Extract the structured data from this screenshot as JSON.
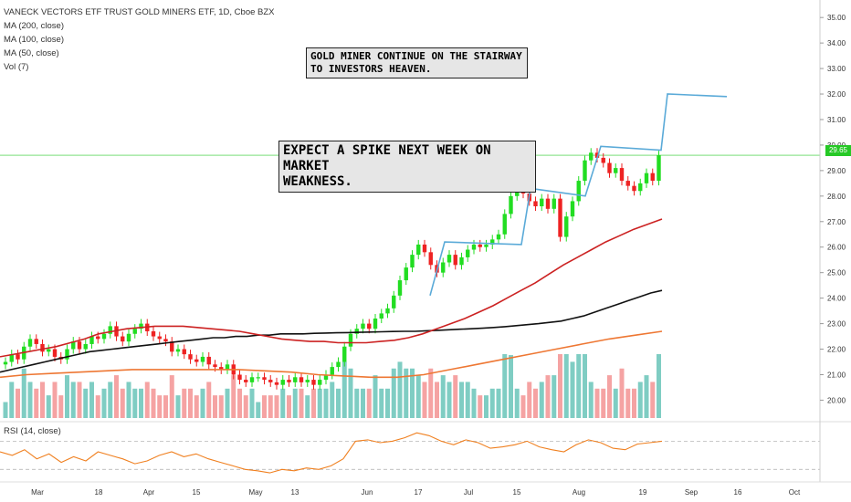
{
  "legend": {
    "title": "VANECK VECTORS ETF TRUST GOLD MINERS ETF, 1D, Cboe BZX",
    "indicators": [
      "MA (200, close)",
      "MA (100, close)",
      "MA (50, close)",
      "Vol (7)"
    ]
  },
  "annotations": {
    "note1": "GOLD MINER CONTINUE ON THE STAIRWAY\nTO INVESTORS HEAVEN.",
    "note2": "EXPECT A SPIKE NEXT WEEK ON MARKET\nWEAKNESS."
  },
  "rsi_label": "RSI (14, close)",
  "last_price": "29.65",
  "colors": {
    "up": "#22dd22",
    "down": "#ee2222",
    "vol_up": "#7fcdc3",
    "vol_down": "#f5a3a3",
    "ma200": "#111111",
    "ma100": "#cc2222",
    "ma50": "#ee7733",
    "rsi": "#f08020",
    "trendline": "#5aaad8",
    "price_line": "#26c926"
  },
  "chart_data": {
    "type": "candlestick",
    "price_axis_ticks": [
      20.0,
      21.0,
      22.0,
      23.0,
      24.0,
      25.0,
      26.0,
      27.0,
      28.0,
      29.0,
      30.0,
      31.0,
      32.0,
      33.0,
      34.0,
      35.0
    ],
    "ylim": [
      19.3,
      35.4
    ],
    "x_tick_labels": [
      "Mar",
      "18",
      "Apr",
      "15",
      "May",
      "13",
      "Jun",
      "17",
      "Jul",
      "15",
      "Aug",
      "19",
      "Sep",
      "16",
      "Oct"
    ],
    "closes": [
      21.5,
      21.8,
      21.6,
      22.1,
      22.4,
      22.2,
      21.9,
      22.0,
      21.7,
      21.6,
      22.0,
      22.3,
      22.0,
      22.2,
      22.5,
      22.4,
      22.6,
      22.9,
      22.5,
      22.3,
      22.6,
      22.8,
      23.0,
      22.7,
      22.5,
      22.4,
      22.3,
      21.9,
      22.0,
      21.8,
      21.6,
      21.5,
      21.7,
      21.4,
      21.3,
      21.2,
      21.4,
      21.0,
      20.8,
      20.7,
      20.9,
      20.9,
      20.8,
      20.7,
      20.6,
      20.8,
      20.7,
      20.9,
      20.7,
      20.8,
      20.6,
      20.8,
      21.0,
      21.3,
      21.5,
      22.1,
      22.6,
      22.8,
      23.0,
      22.8,
      23.2,
      23.4,
      23.6,
      24.1,
      24.7,
      25.2,
      25.7,
      26.1,
      25.8,
      25.3,
      25.0,
      25.4,
      25.7,
      25.3,
      25.6,
      25.9,
      26.1,
      26.0,
      26.1,
      26.3,
      26.5,
      27.3,
      28.0,
      28.2,
      28.1,
      27.8,
      27.6,
      27.9,
      27.5,
      27.9,
      26.4,
      27.2,
      27.8,
      28.6,
      29.4,
      29.7,
      29.5,
      29.3,
      28.9,
      29.1,
      28.6,
      28.4,
      28.2,
      28.5,
      28.9,
      28.6,
      29.6
    ],
    "ma200": [
      21.1,
      21.2,
      21.3,
      21.4,
      21.5,
      21.6,
      21.7,
      21.8,
      21.9,
      21.95,
      22.0,
      22.05,
      22.1,
      22.15,
      22.2,
      22.25,
      22.3,
      22.35,
      22.4,
      22.45,
      22.45,
      22.5,
      22.5,
      22.55,
      22.55,
      22.6,
      22.6,
      22.6,
      22.62,
      22.63,
      22.64,
      22.65,
      22.66,
      22.67,
      22.68,
      22.69,
      22.7,
      22.7,
      22.72,
      22.74,
      22.76,
      22.78,
      22.8,
      22.82,
      22.85,
      22.88,
      22.92,
      22.96,
      23.0,
      23.05,
      23.1,
      23.2,
      23.3,
      23.45,
      23.6,
      23.75,
      23.9,
      24.05,
      24.2,
      24.3
    ],
    "ma100": [
      21.7,
      21.8,
      21.9,
      22.0,
      22.1,
      22.25,
      22.4,
      22.6,
      22.7,
      22.8,
      22.85,
      22.9,
      22.9,
      22.9,
      22.85,
      22.8,
      22.75,
      22.7,
      22.6,
      22.5,
      22.4,
      22.35,
      22.3,
      22.3,
      22.25,
      22.25,
      22.25,
      22.3,
      22.35,
      22.45,
      22.6,
      22.8,
      23.0,
      23.2,
      23.45,
      23.7,
      24.0,
      24.3,
      24.6,
      24.95,
      25.3,
      25.6,
      25.9,
      26.2,
      26.45,
      26.7,
      26.9,
      27.1
    ],
    "ma50": [
      20.9,
      21.0,
      21.05,
      21.1,
      21.15,
      21.2,
      21.2,
      21.2,
      21.2,
      21.2,
      21.15,
      21.1,
      21.0,
      20.95,
      20.9,
      20.9,
      21.0,
      21.2,
      21.4,
      21.6,
      21.8,
      22.0,
      22.2,
      22.4,
      22.55,
      22.7
    ],
    "rsi": [
      55,
      50,
      58,
      45,
      52,
      40,
      48,
      42,
      55,
      50,
      45,
      38,
      42,
      50,
      55,
      48,
      52,
      45,
      40,
      35,
      30,
      28,
      25,
      30,
      28,
      32,
      30,
      35,
      45,
      70,
      72,
      68,
      70,
      75,
      82,
      78,
      70,
      65,
      72,
      68,
      60,
      62,
      65,
      70,
      62,
      58,
      55,
      65,
      72,
      68,
      60,
      58,
      66,
      68,
      70
    ]
  }
}
